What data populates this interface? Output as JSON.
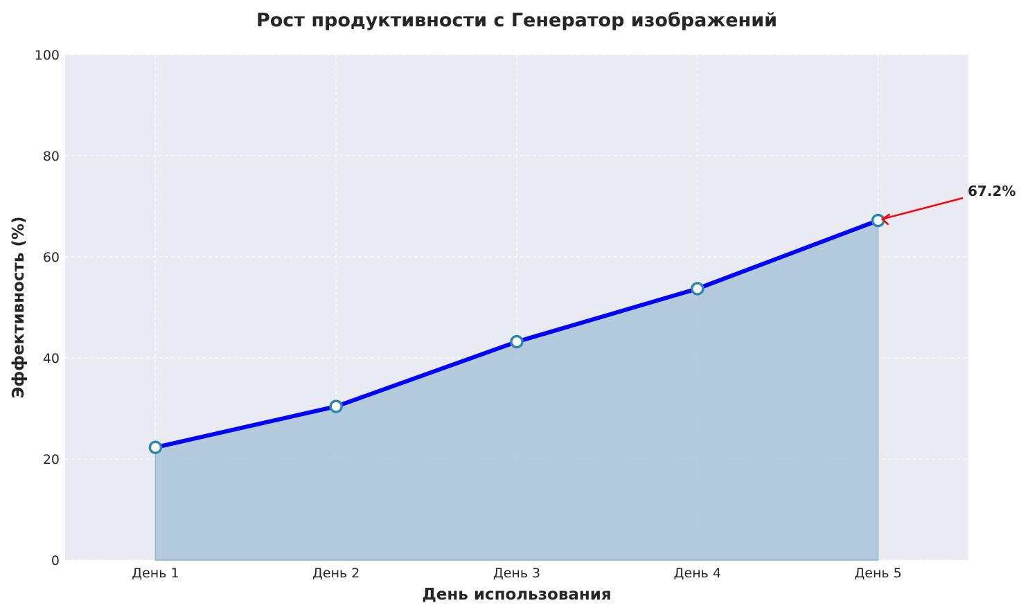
{
  "chart_data": {
    "type": "area",
    "title": "Рост продуктивности с Генератор изображений",
    "xlabel": "День использования",
    "ylabel": "Эффективность (%)",
    "categories": [
      "День 1",
      "День 2",
      "День 3",
      "День 4",
      "День 5"
    ],
    "values": [
      22.3,
      30.4,
      43.2,
      53.7,
      67.2
    ],
    "ylim": [
      0,
      100
    ],
    "yticks": [
      0,
      20,
      40,
      60,
      80,
      100
    ],
    "grid": true,
    "annotation": {
      "text": "67.2%",
      "target_index": 4,
      "arrow_color": "#ff0000"
    },
    "colors": {
      "line": "#0000ff",
      "fill": "#a9c6d9",
      "marker_edge": "#2e86ab",
      "marker_face": "#ffffff",
      "background": "#eaeaf2"
    }
  }
}
